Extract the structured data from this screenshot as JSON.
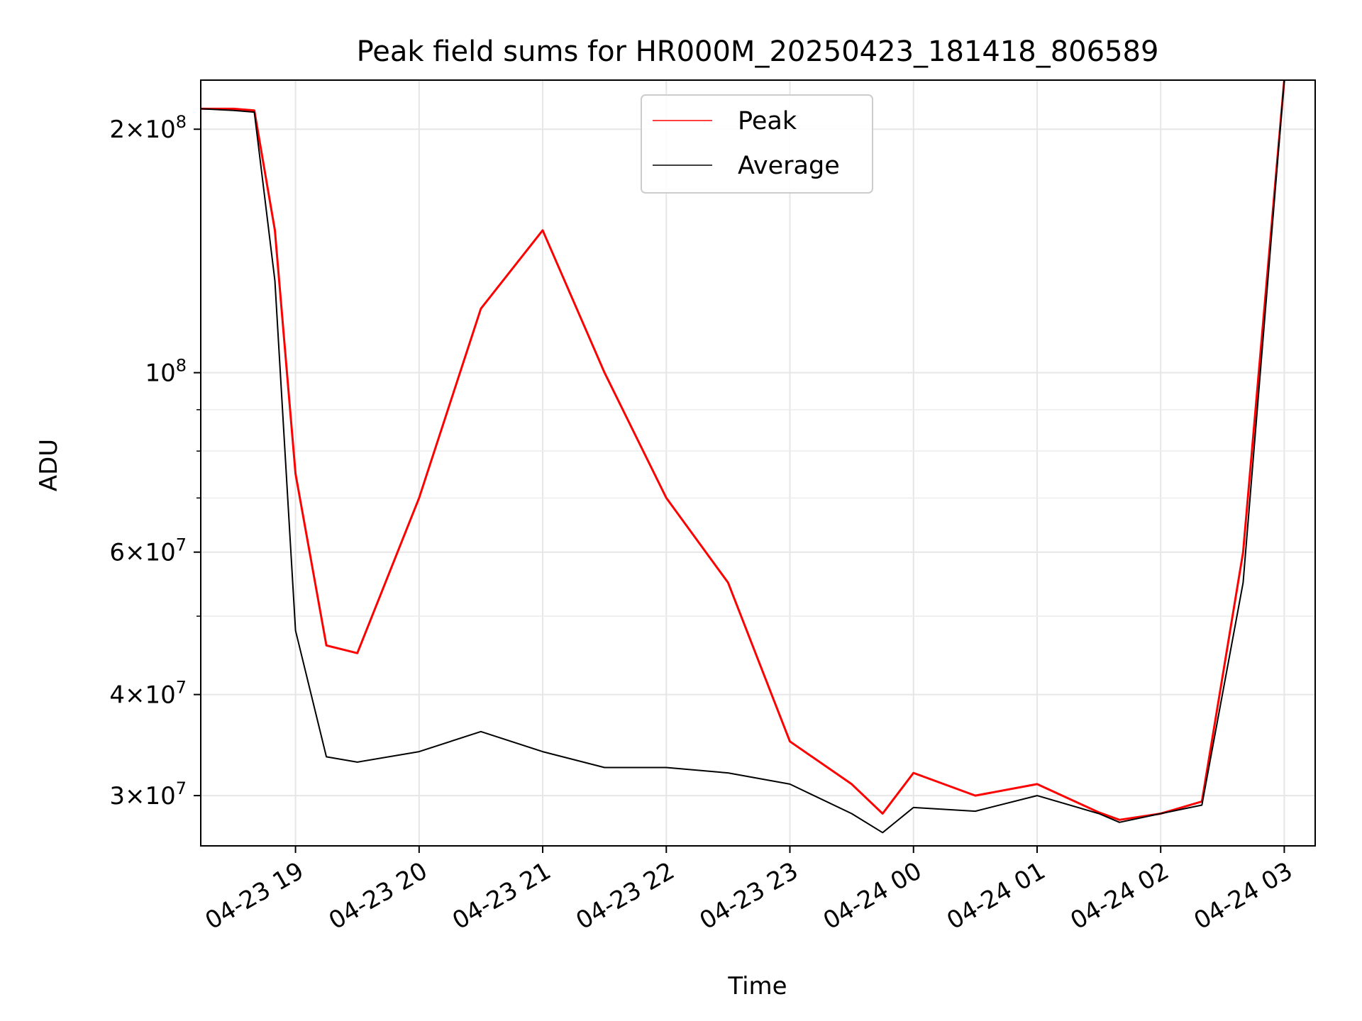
{
  "chart_data": {
    "type": "line",
    "title": "Peak field sums for HR000M_20250423_181418_806589",
    "xlabel": "Time",
    "ylabel": "ADU",
    "y_scale": "log",
    "ylim": [
      26000000,
      230000000
    ],
    "xlim": [
      "2025-04-23 18:14",
      "2025-04-24 03:15"
    ],
    "grid": true,
    "legend_position": "upper center",
    "x_ticks": [
      {
        "value": "2025-04-23 19:00",
        "label": "04-23 19"
      },
      {
        "value": "2025-04-23 20:00",
        "label": "04-23 20"
      },
      {
        "value": "2025-04-23 21:00",
        "label": "04-23 21"
      },
      {
        "value": "2025-04-23 22:00",
        "label": "04-23 22"
      },
      {
        "value": "2025-04-23 23:00",
        "label": "04-23 23"
      },
      {
        "value": "2025-04-24 00:00",
        "label": "04-24 00"
      },
      {
        "value": "2025-04-24 01:00",
        "label": "04-24 01"
      },
      {
        "value": "2025-04-24 02:00",
        "label": "04-24 02"
      },
      {
        "value": "2025-04-24 03:00",
        "label": "04-24 03"
      }
    ],
    "y_ticks_major": [
      {
        "value": 30000000,
        "mant": "3",
        "exp": "7"
      },
      {
        "value": 40000000,
        "mant": "4",
        "exp": "7"
      },
      {
        "value": 60000000,
        "mant": "6",
        "exp": "7"
      },
      {
        "value": 100000000,
        "mant": "",
        "exp": "8"
      },
      {
        "value": 200000000,
        "mant": "2",
        "exp": "8"
      }
    ],
    "y_ticks_minor": [
      50000000,
      70000000,
      80000000,
      90000000
    ],
    "series": [
      {
        "name": "Peak",
        "color": "#ff0000",
        "x": [
          "2025-04-23 18:14",
          "2025-04-23 18:30",
          "2025-04-23 18:40",
          "2025-04-23 18:50",
          "2025-04-23 19:00",
          "2025-04-23 19:15",
          "2025-04-23 19:30",
          "2025-04-23 20:00",
          "2025-04-23 20:30",
          "2025-04-23 21:00",
          "2025-04-23 21:30",
          "2025-04-23 22:00",
          "2025-04-23 22:30",
          "2025-04-23 23:00",
          "2025-04-23 23:30",
          "2025-04-23 23:45",
          "2025-04-24 00:00",
          "2025-04-24 00:30",
          "2025-04-24 01:00",
          "2025-04-24 01:30",
          "2025-04-24 01:40",
          "2025-04-24 02:00",
          "2025-04-24 02:20",
          "2025-04-24 02:40",
          "2025-04-24 03:00"
        ],
        "values": [
          212000000,
          212000000,
          211000000,
          150000000,
          75000000,
          46000000,
          45000000,
          70000000,
          120000000,
          150000000,
          100000000,
          70000000,
          55000000,
          35000000,
          31000000,
          28500000,
          32000000,
          30000000,
          31000000,
          28600000,
          28000000,
          28500000,
          29500000,
          60000000,
          230000000
        ]
      },
      {
        "name": "Average",
        "color": "#000000",
        "x": [
          "2025-04-23 18:14",
          "2025-04-23 18:30",
          "2025-04-23 18:40",
          "2025-04-23 18:50",
          "2025-04-23 19:00",
          "2025-04-23 19:15",
          "2025-04-23 19:30",
          "2025-04-23 20:00",
          "2025-04-23 20:30",
          "2025-04-23 21:00",
          "2025-04-23 21:30",
          "2025-04-23 22:00",
          "2025-04-23 22:30",
          "2025-04-23 23:00",
          "2025-04-23 23:30",
          "2025-04-23 23:45",
          "2025-04-24 00:00",
          "2025-04-24 00:30",
          "2025-04-24 01:00",
          "2025-04-24 01:30",
          "2025-04-24 01:40",
          "2025-04-24 02:00",
          "2025-04-24 02:20",
          "2025-04-24 02:40",
          "2025-04-24 03:00"
        ],
        "values": [
          212000000,
          211000000,
          210000000,
          130000000,
          48000000,
          33500000,
          33000000,
          34000000,
          36000000,
          34000000,
          32500000,
          32500000,
          32000000,
          31000000,
          28500000,
          27000000,
          29000000,
          28700000,
          30000000,
          28500000,
          27800000,
          28500000,
          29200000,
          55000000,
          230000000
        ]
      }
    ]
  }
}
